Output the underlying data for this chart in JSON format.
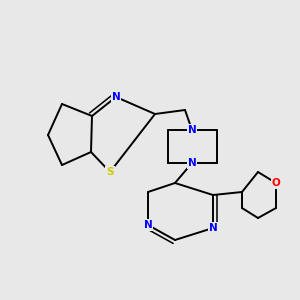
{
  "background_color": "#e8e8e8",
  "bond_color": "#000000",
  "bond_width": 1.4,
  "atom_colors": {
    "N": "#0000ff",
    "S": "#cccc00",
    "O": "#ff0000",
    "C": "#000000"
  },
  "font_size": 7.5,
  "fig_bg": "#e8e8e8"
}
